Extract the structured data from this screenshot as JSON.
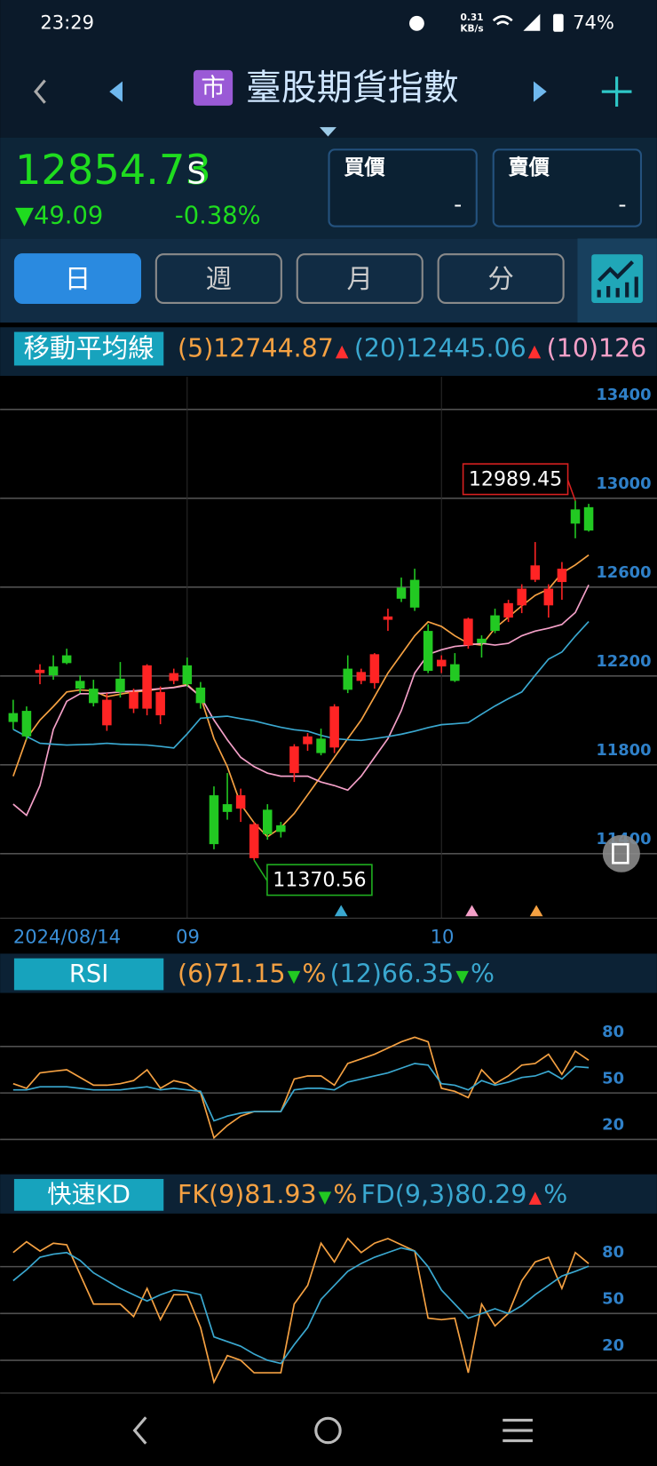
{
  "status_bar": {
    "time": "23:29",
    "speed": "0.31",
    "speed_unit": "KB/s",
    "battery": "74%"
  },
  "header": {
    "badge": "市",
    "title": "臺股期貨指數"
  },
  "quote": {
    "price": "12854.73",
    "flag": "S",
    "change": "▼49.09",
    "change_pct": "-0.38%",
    "bid_label": "買價",
    "bid": "-",
    "ask_label": "賣價",
    "ask": "-"
  },
  "tabs": [
    "日",
    "週",
    "月",
    "分"
  ],
  "ma_panel": {
    "label": "移動平均線",
    "legend": [
      {
        "text": "(5)12744.87",
        "color": "#f5a142",
        "arrow": "▲",
        "arrow_color": "#ff3030"
      },
      {
        "text": "(20)12445.06",
        "color": "#3aa8d0",
        "arrow": "▲",
        "arrow_color": "#ff3030"
      },
      {
        "text": "(10)126",
        "color": "#f4a0c8"
      }
    ],
    "chart": {
      "type": "candlestick",
      "up_color": "#ff2424",
      "down_color": "#22c922",
      "grid": true,
      "categories": [
        "2024/08/14",
        null,
        null,
        null,
        null,
        null,
        null,
        null,
        null,
        null,
        null,
        null,
        null,
        "09",
        null,
        null,
        null,
        null,
        null,
        null,
        null,
        null,
        null,
        null,
        null,
        null,
        null,
        null,
        null,
        null,
        null,
        null,
        "10",
        null,
        null,
        null,
        null,
        null,
        null,
        null,
        null,
        null,
        null,
        null
      ],
      "candles": [
        {
          "open": 12033,
          "high": 12093,
          "low": 11960,
          "close": 11993
        },
        {
          "open": 12043,
          "high": 12063,
          "low": 11913,
          "close": 11928
        },
        {
          "open": 12213,
          "high": 12253,
          "low": 12163,
          "close": 12228
        },
        {
          "open": 12243,
          "high": 12293,
          "low": 12183,
          "close": 12203
        },
        {
          "open": 12293,
          "high": 12323,
          "low": 12253,
          "close": 12258
        },
        {
          "open": 12178,
          "high": 12203,
          "low": 12123,
          "close": 12143
        },
        {
          "open": 12143,
          "high": 12183,
          "low": 12063,
          "close": 12078
        },
        {
          "open": 11978,
          "high": 12123,
          "low": 11953,
          "close": 12093
        },
        {
          "open": 12188,
          "high": 12263,
          "low": 12103,
          "close": 12128
        },
        {
          "open": 12053,
          "high": 12143,
          "low": 12033,
          "close": 12128
        },
        {
          "open": 12053,
          "high": 12253,
          "low": 12023,
          "close": 12248
        },
        {
          "open": 12023,
          "high": 12153,
          "low": 11983,
          "close": 12128
        },
        {
          "open": 12178,
          "high": 12233,
          "low": 12163,
          "close": 12213
        },
        {
          "open": 12248,
          "high": 12283,
          "low": 12153,
          "close": 12163
        },
        {
          "open": 12148,
          "high": 12173,
          "low": 12053,
          "close": 12078
        },
        {
          "open": 11663,
          "high": 11703,
          "low": 11420,
          "close": 11443
        },
        {
          "open": 11623,
          "high": 11763,
          "low": 11553,
          "close": 11588
        },
        {
          "open": 11603,
          "high": 11693,
          "low": 11543,
          "close": 11663
        },
        {
          "open": 11380,
          "high": 11543,
          "low": 11370.56,
          "close": 11533
        },
        {
          "open": 11598,
          "high": 11623,
          "low": 11463,
          "close": 11488
        },
        {
          "open": 11528,
          "high": 11543,
          "low": 11473,
          "close": 11498
        },
        {
          "open": 11763,
          "high": 11893,
          "low": 11723,
          "close": 11883
        },
        {
          "open": 11893,
          "high": 11943,
          "low": 11863,
          "close": 11928
        },
        {
          "open": 11918,
          "high": 11963,
          "low": 11843,
          "close": 11853
        },
        {
          "open": 11878,
          "high": 12073,
          "low": 11853,
          "close": 12063
        },
        {
          "open": 12233,
          "high": 12293,
          "low": 12123,
          "close": 12138
        },
        {
          "open": 12178,
          "high": 12233,
          "low": 12163,
          "close": 12218
        },
        {
          "open": 12168,
          "high": 12303,
          "low": 12143,
          "close": 12298
        },
        {
          "open": 12453,
          "high": 12503,
          "low": 12403,
          "close": 12468
        },
        {
          "open": 12598,
          "high": 12643,
          "low": 12533,
          "close": 12548
        },
        {
          "open": 12633,
          "high": 12683,
          "low": 12493,
          "close": 12508
        },
        {
          "open": 12403,
          "high": 12433,
          "low": 12213,
          "close": 12223
        },
        {
          "open": 12243,
          "high": 12293,
          "low": 12213,
          "close": 12273
        },
        {
          "open": 12253,
          "high": 12303,
          "low": 12173,
          "close": 12178
        },
        {
          "open": 12338,
          "high": 12463,
          "low": 12323,
          "close": 12458
        },
        {
          "open": 12368,
          "high": 12383,
          "low": 12283,
          "close": 12348
        },
        {
          "open": 12473,
          "high": 12503,
          "low": 12393,
          "close": 12403
        },
        {
          "open": 12463,
          "high": 12543,
          "low": 12443,
          "close": 12528
        },
        {
          "open": 12518,
          "high": 12613,
          "low": 12483,
          "close": 12593
        },
        {
          "open": 12633,
          "high": 12803,
          "low": 12623,
          "close": 12698
        },
        {
          "open": 12518,
          "high": 12613,
          "low": 12463,
          "close": 12593
        },
        {
          "open": 12623,
          "high": 12713,
          "low": 12543,
          "close": 12683
        },
        {
          "open": 12950,
          "high": 12989.45,
          "low": 12820,
          "close": 12886
        },
        {
          "open": 12960,
          "high": 12975,
          "low": 12850,
          "close": 12854.73
        }
      ],
      "series": [
        {
          "color": "#f5a142",
          "values": [
            11749,
            11918,
            12002,
            12063,
            12128,
            12137,
            12133,
            12107,
            12118,
            12128,
            12133,
            12143,
            12149,
            12162,
            12107,
            11918,
            11792,
            11623,
            11539,
            11476,
            11518,
            11581,
            11665,
            11749,
            11834,
            11918,
            12002,
            12107,
            12213,
            12297,
            12381,
            12444,
            12423,
            12381,
            12347,
            12339,
            12415,
            12465,
            12516,
            12563,
            12591,
            12663,
            12700,
            12744.87
          ]
        },
        {
          "color": "#f4a0c8",
          "values": [
            11623,
            11573,
            11707,
            11960,
            12086,
            12120,
            12120,
            12123,
            12128,
            12133,
            12138,
            12143,
            12148,
            12158,
            12107,
            12002,
            11913,
            11834,
            11792,
            11763,
            11749,
            11749,
            11749,
            11723,
            11707,
            11686,
            11749,
            11834,
            11918,
            12044,
            12213,
            12297,
            12318,
            12333,
            12339,
            12347,
            12339,
            12347,
            12381,
            12402,
            12415,
            12432,
            12486,
            12610
          ]
        },
        {
          "color": "#3aa8d0",
          "values": [
            11960,
            11928,
            11897,
            11893,
            11889,
            11891,
            11893,
            11897,
            11893,
            11891,
            11889,
            11883,
            11876,
            11939,
            12010,
            12015,
            12019,
            12008,
            11998,
            11983,
            11969,
            11958,
            11952,
            11933,
            11918,
            11913,
            11910,
            11918,
            11927,
            11938,
            11952,
            11968,
            11981,
            11985,
            11990,
            12028,
            12065,
            12098,
            12128,
            12203,
            12276,
            12308,
            12380,
            12445.06
          ]
        }
      ],
      "ylim": [
        11110,
        13547
      ],
      "yticks": [
        11400,
        11800,
        12200,
        12600,
        13000,
        13400
      ]
    }
  },
  "rsi_panel": {
    "label": "RSI",
    "legend": [
      {
        "text": "(6)71.15",
        "color": "#f5a142",
        "arrow": "▼",
        "arrow_color": "#22c922",
        "unit": "%"
      },
      {
        "text": "(12)66.35",
        "color": "#3aa8d0",
        "arrow": "▼",
        "arrow_color": "#22c922",
        "unit": "%"
      }
    ],
    "chart": {
      "type": "line",
      "grid": true,
      "series": [
        {
          "color": "#f5a142",
          "values": [
            56,
            53,
            63,
            64,
            65,
            60,
            55,
            55,
            56,
            58,
            65,
            53,
            58,
            56,
            50,
            21,
            29,
            35,
            38,
            38,
            38,
            59,
            61,
            61,
            55,
            69,
            72,
            75,
            79,
            83,
            86,
            83,
            53,
            51,
            47,
            65,
            56,
            61,
            68,
            69,
            75,
            62,
            77,
            71.15
          ]
        },
        {
          "color": "#3aa8d0",
          "values": [
            52,
            52,
            54,
            54,
            54,
            53,
            52,
            52,
            52,
            53,
            54,
            52,
            53,
            52,
            51,
            32,
            35,
            37,
            38,
            38,
            38,
            52,
            53,
            53,
            52,
            57,
            59,
            61,
            63,
            66,
            69,
            68,
            56,
            55,
            52,
            58,
            55,
            57,
            60,
            61,
            64,
            59,
            67,
            66.35
          ]
        }
      ],
      "ylim": [
        18,
        114
      ],
      "yticks": [
        20,
        50,
        80
      ]
    }
  },
  "kd_panel": {
    "label": "快速KD",
    "legend": [
      {
        "text": "FK(9)81.93",
        "color": "#f5a142",
        "arrow": "▼",
        "arrow_color": "#22c922",
        "unit": "%"
      },
      {
        "text": "FD(9,3)80.29",
        "color": "#3aa8d0",
        "arrow": "▲",
        "arrow_color": "#ff3030",
        "unit": "%"
      }
    ],
    "chart": {
      "type": "line",
      "grid": true,
      "series": [
        {
          "color": "#f5a142",
          "values": [
            89,
            96,
            90,
            95,
            94,
            75,
            56,
            56,
            56,
            48,
            66,
            46,
            62,
            62,
            41,
            6,
            23,
            20,
            12,
            12,
            12,
            56,
            68,
            95,
            83,
            98,
            89,
            95,
            98,
            94,
            90,
            47,
            46,
            47,
            12,
            56,
            42,
            50,
            71,
            83,
            86,
            66,
            89,
            81.93
          ]
        },
        {
          "color": "#3aa8d0",
          "values": [
            71,
            78,
            86,
            88,
            89,
            84,
            76,
            71,
            66,
            62,
            58,
            62,
            65,
            64,
            62,
            35,
            32,
            29,
            24,
            20,
            18,
            30,
            41,
            59,
            68,
            77,
            82,
            86,
            89,
            92,
            90,
            80,
            65,
            56,
            47,
            50,
            53,
            50,
            55,
            62,
            68,
            74,
            77,
            80.29
          ]
        }
      ],
      "ylim": [
        -1,
        114
      ],
      "yticks": [
        20,
        50,
        80
      ]
    }
  }
}
